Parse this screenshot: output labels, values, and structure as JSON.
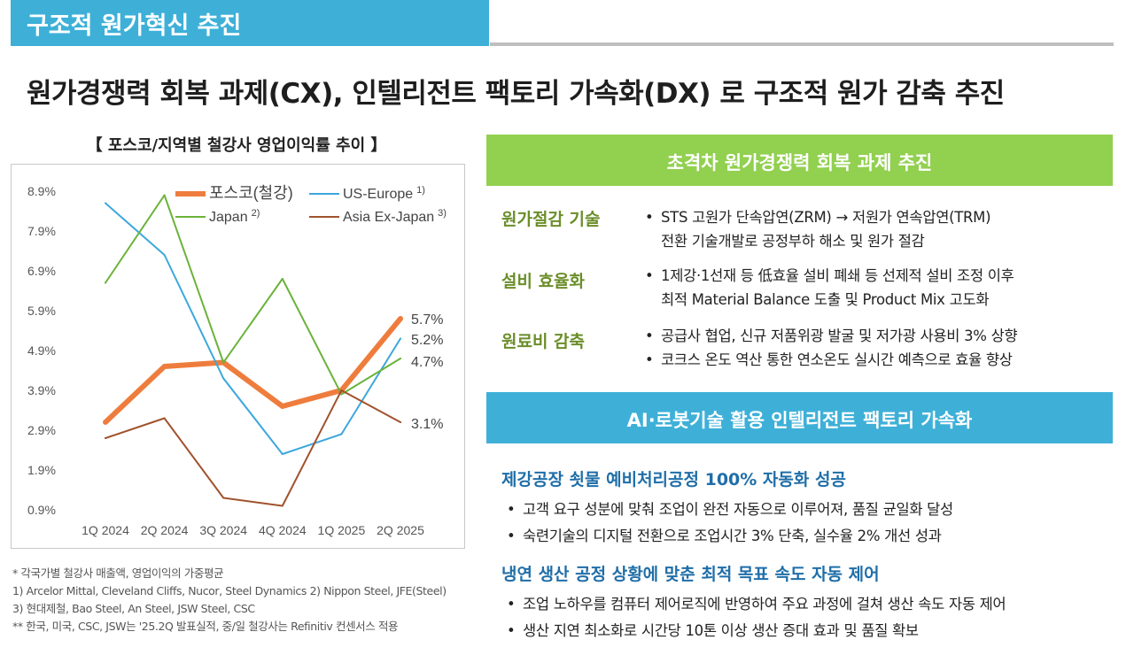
{
  "header": {
    "section_tab": "구조적 원가혁신 추진",
    "headline": "원가경쟁력 회복 과제(CX), 인텔리전트 팩토리 가속화(DX) 로 구조적 원가 감축 추진"
  },
  "chart_data": {
    "type": "line",
    "title": "【 포스코/지역별 철강사 영업이익률 추이 】",
    "categories": [
      "1Q 2024",
      "2Q 2024",
      "3Q 2024",
      "4Q 2024",
      "1Q 2025",
      "2Q 2025"
    ],
    "y_ticks": [
      "8.9%",
      "7.9%",
      "6.9%",
      "5.9%",
      "4.9%",
      "3.9%",
      "2.9%",
      "1.9%",
      "0.9%"
    ],
    "ylim": [
      0.9,
      8.9
    ],
    "grid": false,
    "legend_position": "top",
    "series": [
      {
        "name": "포스코(철강)",
        "color": "#ee7d3d",
        "width": 6,
        "values": [
          3.1,
          4.5,
          4.6,
          3.5,
          3.9,
          5.7
        ],
        "end_label": "5.7%"
      },
      {
        "name": "US-Europe",
        "sup": "1)",
        "color": "#3ca7dd",
        "width": 2,
        "values": [
          8.6,
          7.3,
          4.2,
          2.3,
          2.8,
          5.2
        ],
        "end_label": "5.2%"
      },
      {
        "name": "Japan",
        "sup": "2)",
        "color": "#6ab33a",
        "width": 2,
        "values": [
          6.6,
          8.8,
          4.6,
          6.7,
          3.8,
          4.7
        ],
        "end_label": "4.7%"
      },
      {
        "name": "Asia Ex-Japan",
        "sup": "3)",
        "color": "#a0522d",
        "width": 2,
        "values": [
          2.7,
          3.2,
          1.2,
          1.0,
          3.9,
          3.1
        ],
        "end_label": "3.1%"
      }
    ]
  },
  "footnotes": [
    "* 각국가별 철강사 매출액, 영업이익의 가중평균",
    "1) Arcelor Mittal, Cleveland Cliffs, Nucor, Steel Dynamics   2) Nippon Steel, JFE(Steel)",
    "3) 현대제철, Bao Steel, An Steel, JSW Steel, CSC",
    "** 한국, 미국, CSC, JSW는 '25.2Q 발표실적, 중/일 철강사는 Refinitiv 컨센서스 적용"
  ],
  "cx": {
    "banner": "초격차 원가경쟁력 회복 과제 추진",
    "items": [
      {
        "label": "원가절감 기술",
        "bullets": [
          "STS 고원가 단속압연(ZRM) → 저원가 연속압연(TRM)"
        ],
        "cont": "전환 기술개발로 공정부하 해소 및 원가 절감"
      },
      {
        "label": "설비 효율화",
        "bullets": [
          "1제강·1선재 등 低효율 설비 폐쇄 등 선제적 설비 조정 이후"
        ],
        "cont": "최적 Material Balance 도출 및 Product Mix 고도화"
      },
      {
        "label": "원료비 감축",
        "bullets": [
          "공급사 협업, 신규 저품위광 발굴 및 저가광 사용비 3% 상향",
          "코크스 온도 역산 통한 연소온도 실시간 예측으로 효율 향상"
        ],
        "cont": ""
      }
    ]
  },
  "dx": {
    "banner": "AI·로봇기술 활용 인텔리전트 팩토리 가속화",
    "sections": [
      {
        "heading": "제강공장 쇳물 예비처리공정 100% 자동화 성공",
        "bullets": [
          "고객 요구 성분에 맞춰 조업이 완전 자동으로 이루어져, 품질 균일화 달성",
          "숙련기술의 디지털 전환으로 조업시간 3% 단축, 실수율 2% 개선 성과"
        ]
      },
      {
        "heading": "냉연 생산 공정 상황에 맞춘 최적 목표 속도 자동 제어",
        "bullets": [
          "조업 노하우를 컴퓨터 제어로직에 반영하여 주요 과정에 걸쳐 생산 속도 자동 제어",
          "생산 지연 최소화로 시간당 10톤 이상 생산 증대 효과 및 품질 확보"
        ]
      }
    ]
  }
}
